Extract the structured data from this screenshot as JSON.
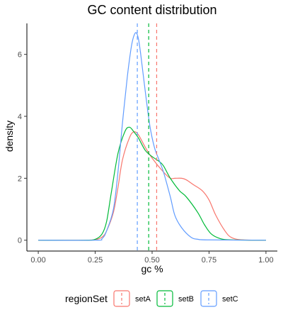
{
  "chart_data": {
    "type": "line",
    "title": "GC content distribution",
    "xlabel": "gc %",
    "ylabel": "density",
    "xlim": [
      -0.05,
      1.05
    ],
    "ylim": [
      -0.35,
      7.0
    ],
    "x_ticks": [
      0.0,
      0.25,
      0.5,
      0.75,
      1.0
    ],
    "x_tick_labels": [
      "0.00",
      "0.25",
      "0.50",
      "0.75",
      "1.00"
    ],
    "y_ticks": [
      0,
      2,
      4,
      6
    ],
    "y_tick_labels": [
      "0",
      "2",
      "4",
      "6"
    ],
    "grid": false,
    "legend": {
      "title": "regionSet",
      "position": "bottom"
    },
    "series": [
      {
        "name": "setA",
        "color": "#F8766D",
        "mean": 0.52,
        "x": [
          0.0,
          0.2,
          0.25,
          0.28,
          0.3,
          0.33,
          0.35,
          0.37,
          0.4,
          0.42,
          0.44,
          0.47,
          0.5,
          0.55,
          0.58,
          0.6,
          0.63,
          0.65,
          0.68,
          0.72,
          0.75,
          0.78,
          0.82,
          0.85,
          0.9,
          1.0
        ],
        "y": [
          0.0,
          0.0,
          0.02,
          0.1,
          0.3,
          0.9,
          1.7,
          2.6,
          3.3,
          3.5,
          3.4,
          3.0,
          2.65,
          2.2,
          2.0,
          2.0,
          2.0,
          1.95,
          1.8,
          1.6,
          1.3,
          0.8,
          0.3,
          0.08,
          0.01,
          0.0
        ]
      },
      {
        "name": "setB",
        "color": "#00BA38",
        "mean": 0.485,
        "x": [
          0.0,
          0.2,
          0.25,
          0.28,
          0.3,
          0.32,
          0.35,
          0.38,
          0.4,
          0.42,
          0.44,
          0.47,
          0.5,
          0.53,
          0.55,
          0.58,
          0.62,
          0.65,
          0.7,
          0.73,
          0.76,
          0.8,
          0.85,
          1.0
        ],
        "y": [
          0.0,
          0.0,
          0.03,
          0.2,
          0.6,
          1.5,
          2.8,
          3.5,
          3.65,
          3.5,
          3.3,
          2.9,
          2.7,
          2.55,
          2.4,
          2.0,
          1.6,
          1.4,
          0.9,
          0.5,
          0.2,
          0.05,
          0.01,
          0.0
        ]
      },
      {
        "name": "setC",
        "color": "#619CFF",
        "mean": 0.435,
        "x": [
          0.0,
          0.25,
          0.28,
          0.3,
          0.33,
          0.35,
          0.37,
          0.39,
          0.4,
          0.41,
          0.42,
          0.43,
          0.44,
          0.45,
          0.47,
          0.49,
          0.51,
          0.53,
          0.55,
          0.58,
          0.6,
          0.63,
          0.67,
          0.7,
          0.75,
          1.0
        ],
        "y": [
          0.0,
          0.0,
          0.05,
          0.3,
          1.0,
          2.2,
          3.8,
          5.2,
          5.8,
          6.3,
          6.6,
          6.7,
          6.5,
          6.0,
          4.8,
          3.7,
          3.0,
          2.6,
          2.2,
          1.4,
          0.8,
          0.4,
          0.1,
          0.03,
          0.01,
          0.0
        ]
      }
    ]
  }
}
